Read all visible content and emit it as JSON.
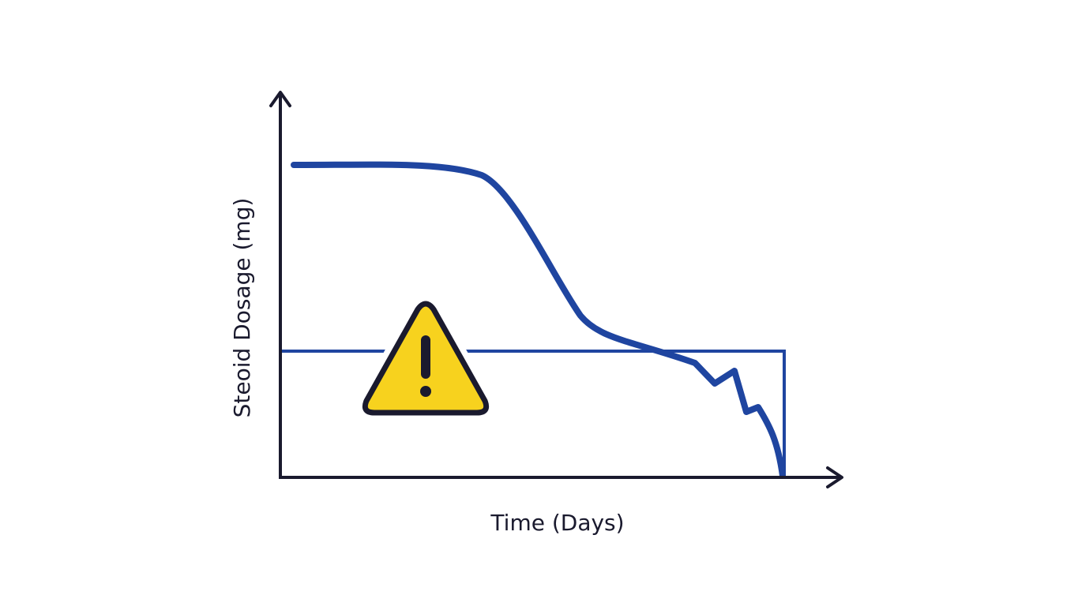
{
  "labels": {
    "x_axis": "Time (Days)",
    "y_axis": "Steoid Dosage (mg)"
  }
}
